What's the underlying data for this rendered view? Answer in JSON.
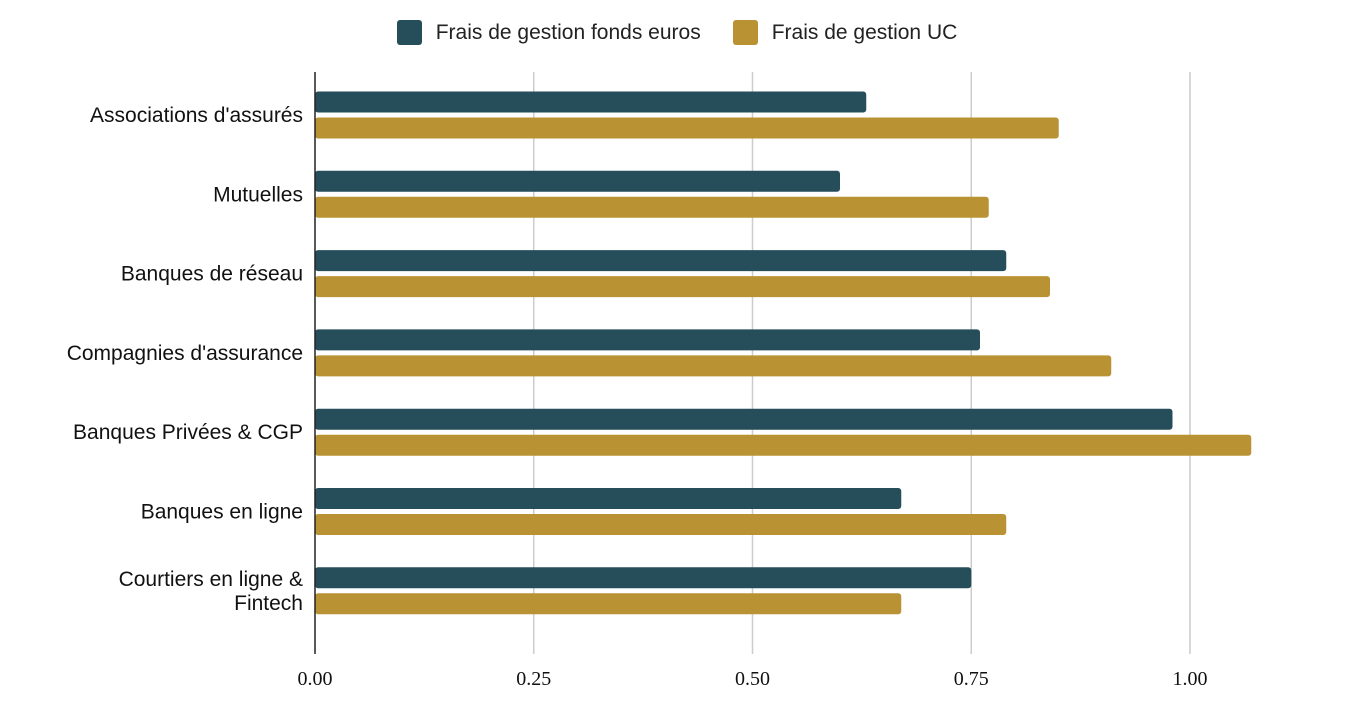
{
  "chart_data": {
    "type": "bar",
    "orientation": "horizontal",
    "categories": [
      "Associations d'assurés",
      "Mutuelles",
      "Banques de réseau",
      "Compagnies d'assurance",
      "Banques Privées & CGP",
      "Banques en ligne",
      "Courtiers en ligne & Fintech"
    ],
    "series": [
      {
        "name": "Frais de gestion fonds euros",
        "color": "#264D5A",
        "values": [
          0.63,
          0.6,
          0.79,
          0.76,
          0.98,
          0.67,
          0.75
        ]
      },
      {
        "name": "Frais de gestion UC",
        "color": "#B99333",
        "values": [
          0.85,
          0.77,
          0.84,
          0.91,
          1.07,
          0.79,
          0.67
        ]
      }
    ],
    "x_ticks": [
      "0.00",
      "0.25",
      "0.50",
      "0.75",
      "1.00"
    ],
    "xlim": [
      0,
      1.1
    ],
    "grid": true,
    "legend_position": "top-center",
    "title": "",
    "xlabel": "",
    "ylabel": ""
  }
}
